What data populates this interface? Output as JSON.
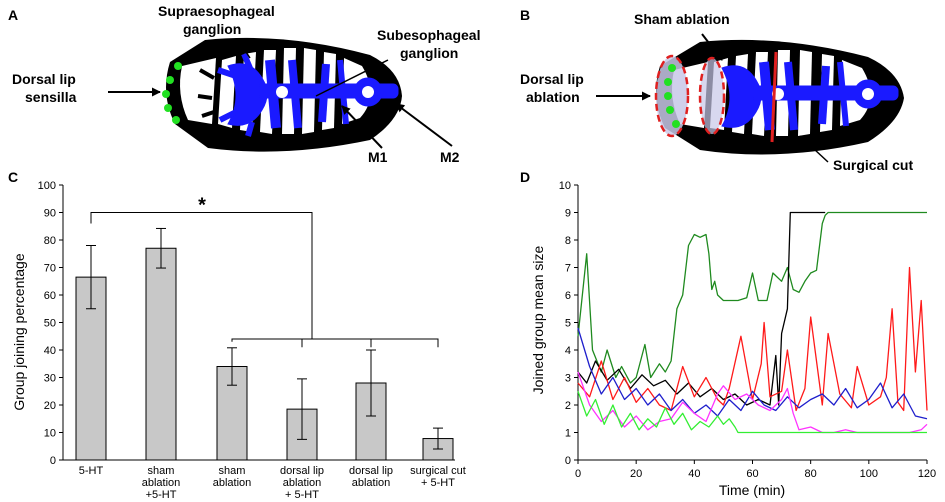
{
  "panels": {
    "A": {
      "letter": "A",
      "labels": {
        "supra_line1": "Supraesophageal",
        "supra_line2": "ganglion",
        "sub_line1": "Subesophageal",
        "sub_line2": "ganglion",
        "dorsal_line1": "Dorsal lip",
        "dorsal_line2": "sensilla",
        "m1": "M1",
        "m2": "M2"
      }
    },
    "B": {
      "letter": "B",
      "labels": {
        "sham": "Sham ablation",
        "dorsal_line1": "Dorsal lip",
        "dorsal_line2": "ablation",
        "cut": "Surgical cut"
      }
    },
    "C": {
      "letter": "C",
      "significance": "*"
    },
    "D": {
      "letter": "D"
    }
  },
  "colors": {
    "nerve_blue": "#1a1aff",
    "sensilla_green": "#22e022",
    "ablation_red": "#e02020",
    "bar_gray": "#c8c8c8",
    "series_black": "#000000",
    "series_dark_green": "#1f8a1f",
    "series_red": "#ff1a1a",
    "series_blue": "#1f1fcc",
    "series_magenta": "#ff33ff",
    "series_light_green": "#33ee33"
  },
  "chart_data": [
    {
      "type": "bar",
      "panel": "C",
      "ylabel": "Group joining percentage",
      "xlabel": "",
      "ylim": [
        0,
        100
      ],
      "yticks": [
        0,
        10,
        20,
        30,
        40,
        50,
        60,
        70,
        80,
        90,
        100
      ],
      "categories": [
        [
          "5-HT"
        ],
        [
          "sham",
          "ablation",
          "+5-HT"
        ],
        [
          "sham",
          "ablation"
        ],
        [
          "dorsal lip",
          "ablation",
          "+ 5-HT"
        ],
        [
          "dorsal lip",
          "ablation"
        ],
        [
          "surgical cut",
          "+ 5-HT"
        ]
      ],
      "values": [
        66.5,
        77,
        34,
        18.5,
        28,
        7.8
      ],
      "errors": [
        11.5,
        7.2,
        6.8,
        11,
        12,
        3.8
      ]
    },
    {
      "type": "line",
      "panel": "D",
      "ylabel": "Joined group mean size",
      "xlabel": "Time (min)",
      "xlim": [
        0,
        120
      ],
      "ylim": [
        0,
        10
      ],
      "xticks": [
        0,
        20,
        40,
        60,
        80,
        100,
        120
      ],
      "yticks": [
        0,
        1,
        2,
        3,
        4,
        5,
        6,
        7,
        8,
        9,
        10
      ],
      "series": [
        {
          "name": "dark-green",
          "color": "#1f8a1f",
          "x": [
            0,
            3,
            5,
            8,
            10,
            13,
            15,
            18,
            20,
            23,
            25,
            28,
            30,
            32,
            34,
            36,
            38,
            40,
            42,
            44,
            45,
            46,
            47,
            48,
            50,
            55,
            58,
            60,
            62,
            65,
            67,
            70,
            72,
            74,
            76,
            78,
            80,
            82,
            84,
            85,
            86,
            90,
            100,
            110,
            120
          ],
          "y": [
            4.5,
            7.5,
            4.0,
            3.2,
            4.0,
            3.0,
            3.4,
            2.8,
            3.0,
            4.2,
            3.0,
            3.5,
            3.2,
            3.6,
            5.5,
            6.0,
            7.8,
            8.2,
            8.1,
            8.2,
            7.5,
            6.2,
            6.5,
            6.0,
            5.8,
            5.8,
            5.9,
            6.8,
            5.8,
            5.8,
            6.8,
            6.5,
            7.0,
            6.2,
            6.1,
            6.5,
            6.8,
            6.9,
            8.6,
            8.9,
            9.0,
            9.0,
            9.0,
            9.0,
            9.0
          ]
        },
        {
          "name": "black",
          "color": "#000000",
          "x": [
            0,
            3,
            6,
            10,
            14,
            18,
            22,
            26,
            30,
            34,
            38,
            42,
            46,
            50,
            54,
            58,
            62,
            66,
            68,
            69,
            70,
            72,
            73,
            80,
            85
          ],
          "y": [
            3.2,
            2.8,
            3.6,
            2.9,
            3.3,
            2.6,
            3.1,
            2.7,
            2.9,
            2.4,
            2.8,
            2.3,
            2.6,
            2.2,
            2.4,
            2.0,
            2.2,
            2.0,
            3.8,
            2.0,
            4.6,
            5.5,
            9.0,
            9.0,
            9.0
          ]
        },
        {
          "name": "red",
          "color": "#ff1a1a",
          "x": [
            0,
            4,
            8,
            12,
            16,
            20,
            24,
            28,
            32,
            36,
            40,
            44,
            48,
            50,
            52,
            56,
            60,
            63,
            64,
            66,
            70,
            72,
            75,
            78,
            80,
            84,
            86,
            90,
            94,
            96,
            100,
            104,
            106,
            108,
            110,
            112,
            114,
            116,
            118,
            120
          ],
          "y": [
            2.8,
            2.3,
            3.6,
            2.2,
            3.0,
            2.1,
            2.6,
            2.0,
            1.8,
            3.4,
            2.3,
            3.0,
            2.2,
            2.0,
            2.6,
            4.5,
            2.2,
            3.5,
            5.0,
            2.3,
            2.5,
            4.0,
            1.8,
            2.6,
            5.2,
            2.0,
            4.6,
            2.4,
            1.9,
            3.4,
            2.0,
            2.3,
            3.0,
            5.5,
            2.1,
            1.8,
            7.0,
            3.2,
            5.8,
            1.8
          ]
        },
        {
          "name": "blue",
          "color": "#1f1fcc",
          "x": [
            0,
            4,
            8,
            12,
            16,
            20,
            24,
            28,
            32,
            36,
            40,
            44,
            48,
            52,
            56,
            60,
            64,
            68,
            72,
            76,
            80,
            84,
            88,
            92,
            96,
            100,
            104,
            108,
            112,
            116,
            120
          ],
          "y": [
            4.8,
            3.4,
            2.4,
            3.0,
            2.2,
            2.6,
            2.0,
            2.4,
            1.8,
            2.2,
            1.7,
            2.0,
            1.6,
            2.2,
            1.8,
            2.5,
            2.0,
            1.8,
            2.3,
            1.9,
            2.2,
            2.4,
            2.0,
            2.6,
            1.9,
            2.2,
            2.8,
            1.9,
            2.4,
            1.6,
            1.5
          ]
        },
        {
          "name": "magenta",
          "color": "#ff33ff",
          "x": [
            0,
            4,
            8,
            12,
            16,
            20,
            24,
            28,
            32,
            36,
            40,
            44,
            48,
            50,
            54,
            58,
            62,
            66,
            70,
            72,
            74,
            76,
            80,
            84,
            88,
            92,
            96,
            100,
            104,
            108,
            110,
            114,
            118,
            120
          ],
          "y": [
            3.2,
            2.0,
            1.4,
            1.8,
            1.2,
            1.6,
            1.1,
            1.4,
            1.5,
            2.1,
            1.7,
            1.4,
            2.4,
            2.7,
            2.2,
            2.4,
            2.0,
            1.8,
            2.2,
            2.6,
            1.7,
            1.1,
            1.2,
            1.0,
            1.0,
            1.1,
            1.0,
            1.0,
            1.0,
            1.0,
            1.0,
            1.0,
            1.1,
            1.3
          ]
        },
        {
          "name": "light-green",
          "color": "#33ee33",
          "x": [
            0,
            3,
            6,
            9,
            12,
            15,
            18,
            21,
            24,
            27,
            30,
            33,
            36,
            39,
            42,
            45,
            48,
            50,
            52,
            54,
            55,
            60,
            80,
            100,
            120
          ],
          "y": [
            2.5,
            1.6,
            2.2,
            1.3,
            2.0,
            1.2,
            1.7,
            1.1,
            1.5,
            1.2,
            1.9,
            1.3,
            1.7,
            1.1,
            1.4,
            1.2,
            1.6,
            1.3,
            1.5,
            1.2,
            1.0,
            1.0,
            1.0,
            1.0,
            1.0
          ]
        }
      ]
    }
  ]
}
